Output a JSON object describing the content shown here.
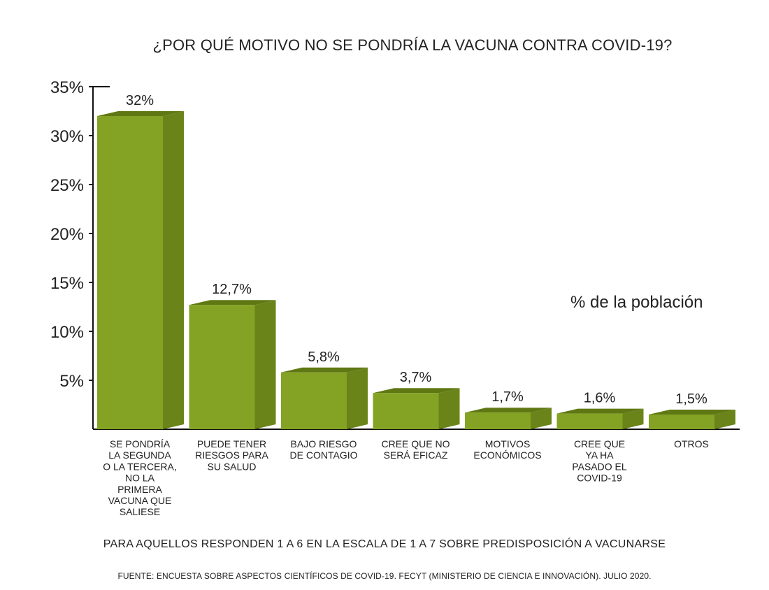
{
  "chart_data": {
    "type": "bar",
    "title": "¿POR QUÉ MOTIVO NO SE PONDRÍA LA VACUNA CONTRA COVID-19?",
    "ylabel": "",
    "xlabel": "",
    "unit_label": "% de la población",
    "ylim": [
      0,
      35
    ],
    "yticks": [
      5,
      10,
      15,
      20,
      25,
      30,
      35
    ],
    "ytick_labels": [
      "5%",
      "10%",
      "15%",
      "20%",
      "25%",
      "30%",
      "35%"
    ],
    "categories": [
      [
        "SE PONDRÍA",
        "LA SEGUNDA",
        "O LA TERCERA,",
        "NO LA",
        "PRIMERA",
        "VACUNA QUE",
        "SALIESE"
      ],
      [
        "PUEDE TENER",
        "RIESGOS PARA",
        "SU SALUD"
      ],
      [
        "BAJO RIESGO",
        "DE CONTAGIO"
      ],
      [
        "CREE QUE NO",
        "SERÁ EFICAZ"
      ],
      [
        "MOTIVOS",
        "ECONÓMICOS"
      ],
      [
        "CREE QUE",
        "YA HA",
        "PASADO EL",
        "COVID-19"
      ],
      [
        "OTROS"
      ]
    ],
    "values": [
      32,
      12.7,
      5.8,
      3.7,
      1.7,
      1.6,
      1.5
    ],
    "value_labels": [
      "32%",
      "12,7%",
      "5,8%",
      "3,7%",
      "1,7%",
      "1,6%",
      "1,5%"
    ],
    "grid": false,
    "colors": {
      "front": "#84a324",
      "side": "#6a8419",
      "top": "#5f7813",
      "axis": "#111111"
    }
  },
  "footer": {
    "note": "PARA AQUELLOS RESPONDEN 1 A 6 EN LA ESCALA DE 1 A 7 SOBRE PREDISPOSICIÓN A VACUNARSE",
    "source": "FUENTE: ENCUESTA SOBRE ASPECTOS CIENTÍFICOS DE COVID-19. FECYT (MINISTERIO DE CIENCIA E INNOVACIÓN). JULIO 2020."
  }
}
